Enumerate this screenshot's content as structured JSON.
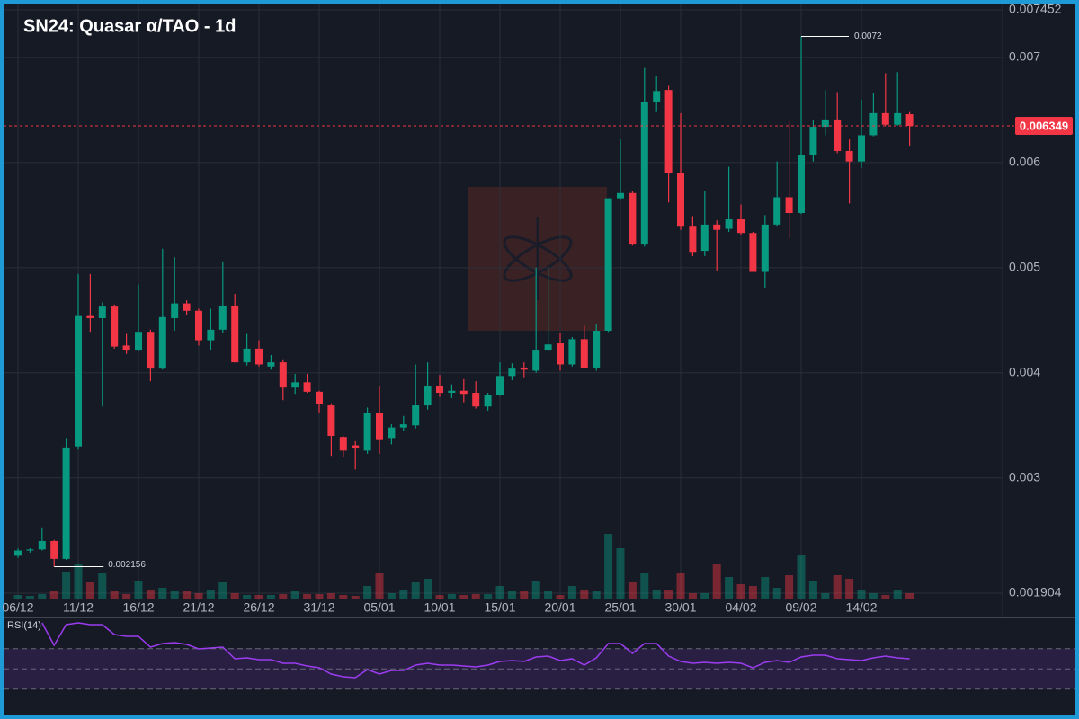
{
  "chart_data": {
    "type": "candlestick",
    "title": "SN24: Quasar α/TAO - 1d",
    "categories": [
      "06/12",
      null,
      null,
      null,
      null,
      "11/12",
      null,
      null,
      null,
      null,
      "16/12",
      null,
      null,
      null,
      null,
      "21/12",
      null,
      null,
      null,
      null,
      "26/12",
      null,
      null,
      null,
      null,
      "31/12",
      null,
      null,
      null,
      null,
      "05/01",
      null,
      null,
      null,
      null,
      "10/01",
      null,
      null,
      null,
      null,
      "15/01",
      null,
      null,
      null,
      null,
      "20/01",
      null,
      null,
      null,
      null,
      "25/01",
      null,
      null,
      null,
      null,
      "30/01",
      null,
      null,
      null,
      null,
      "04/02",
      null,
      null,
      null,
      null,
      "09/02",
      null,
      null,
      null,
      null,
      "14/02",
      null,
      null,
      null,
      null
    ],
    "open": [
      0.00226,
      0.00231,
      0.00232,
      0.0024,
      0.00223,
      0.0033,
      0.00454,
      0.00452,
      0.00463,
      0.00426,
      0.00422,
      0.00439,
      0.00404,
      0.00452,
      0.00466,
      0.00459,
      0.00431,
      0.00441,
      0.00464,
      0.0041,
      0.00423,
      0.00406,
      0.0041,
      0.00386,
      0.00391,
      0.00382,
      0.00369,
      0.00339,
      0.00331,
      0.00326,
      0.00362,
      0.00338,
      0.00348,
      0.0035,
      0.00369,
      0.00387,
      0.00381,
      0.00383,
      0.00381,
      0.00368,
      0.00379,
      0.00397,
      0.00405,
      0.00402,
      0.00422,
      0.00428,
      0.00408,
      0.00432,
      0.00405,
      0.0044,
      0.00566,
      0.00571,
      0.00522,
      0.00658,
      0.00669,
      0.0059,
      0.00539,
      0.00516,
      0.00541,
      0.00537,
      0.00546,
      0.00533,
      0.00496,
      0.00541,
      0.00567,
      0.00552,
      0.00607,
      0.00634,
      0.00641,
      0.00611,
      0.00601,
      0.00626,
      0.00647,
      0.00636,
      0.00646
    ],
    "high": [
      0.00233,
      0.00233,
      0.00253,
      0.00241,
      0.00338,
      0.00494,
      0.00494,
      0.00467,
      0.00465,
      0.00437,
      0.00484,
      0.00441,
      0.00518,
      0.0051,
      0.00469,
      0.00461,
      0.00461,
      0.00506,
      0.00475,
      0.00437,
      0.00431,
      0.00417,
      0.00412,
      0.00399,
      0.00399,
      0.00383,
      0.00371,
      0.0034,
      0.00335,
      0.00367,
      0.00387,
      0.00351,
      0.00359,
      0.00408,
      0.0041,
      0.00398,
      0.00389,
      0.00394,
      0.00392,
      0.00381,
      0.0041,
      0.00409,
      0.0041,
      0.005,
      0.005,
      0.00438,
      0.00434,
      0.00445,
      0.00446,
      0.00566,
      0.00622,
      0.00573,
      0.0069,
      0.00682,
      0.00673,
      0.00647,
      0.00549,
      0.00573,
      0.00545,
      0.00596,
      0.0056,
      0.00534,
      0.0055,
      0.00601,
      0.00639,
      0.0072,
      0.0064,
      0.00669,
      0.00667,
      0.00622,
      0.0066,
      0.00666,
      0.00685,
      0.00686,
      0.00648
    ],
    "low": [
      0.00224,
      0.00229,
      0.00231,
      0.002156,
      0.00222,
      0.00327,
      0.00439,
      0.00368,
      0.00423,
      0.00418,
      0.00421,
      0.00392,
      0.00403,
      0.0044,
      0.00455,
      0.00426,
      0.00422,
      0.00438,
      0.0041,
      0.00407,
      0.00406,
      0.00403,
      0.00374,
      0.0038,
      0.00381,
      0.00362,
      0.00321,
      0.0032,
      0.00308,
      0.00323,
      0.00323,
      0.00332,
      0.00345,
      0.00347,
      0.00365,
      0.00377,
      0.00376,
      0.00372,
      0.00366,
      0.00364,
      0.00378,
      0.00393,
      0.00395,
      0.004,
      0.00421,
      0.00402,
      0.00406,
      0.00405,
      0.00402,
      0.00439,
      0.00565,
      0.00521,
      0.0052,
      0.00648,
      0.00562,
      0.00536,
      0.00511,
      0.00511,
      0.00497,
      0.00534,
      0.00531,
      0.00496,
      0.00481,
      0.00539,
      0.00528,
      0.00551,
      0.00601,
      0.00626,
      0.00609,
      0.00561,
      0.00595,
      0.00625,
      0.00635,
      0.00635,
      0.00616
    ],
    "close": [
      0.00231,
      0.00232,
      0.0024,
      0.00223,
      0.00329,
      0.00454,
      0.00452,
      0.00463,
      0.00425,
      0.00422,
      0.00439,
      0.00404,
      0.00453,
      0.00466,
      0.00459,
      0.00431,
      0.00441,
      0.00464,
      0.0041,
      0.00423,
      0.00408,
      0.0041,
      0.00386,
      0.00391,
      0.00382,
      0.0037,
      0.0034,
      0.00326,
      0.00328,
      0.00362,
      0.00336,
      0.00348,
      0.00351,
      0.00369,
      0.00387,
      0.00381,
      0.00383,
      0.0038,
      0.00368,
      0.00379,
      0.00397,
      0.00404,
      0.00403,
      0.00422,
      0.00427,
      0.00408,
      0.00432,
      0.00405,
      0.0044,
      0.00566,
      0.00571,
      0.00522,
      0.00658,
      0.00668,
      0.0059,
      0.00539,
      0.00515,
      0.00541,
      0.00536,
      0.00546,
      0.00533,
      0.00496,
      0.00541,
      0.00567,
      0.00552,
      0.00607,
      0.00634,
      0.00641,
      0.00611,
      0.00601,
      0.00626,
      0.00647,
      0.00636,
      0.00647,
      0.006349
    ],
    "volume": [
      4,
      3,
      5,
      8,
      30,
      38,
      18,
      28,
      8,
      5,
      20,
      10,
      12,
      8,
      8,
      6,
      10,
      18,
      6,
      4,
      4,
      4,
      5,
      8,
      5,
      5,
      6,
      4,
      3,
      14,
      28,
      6,
      10,
      18,
      22,
      4,
      5,
      4,
      5,
      5,
      14,
      8,
      8,
      20,
      8,
      4,
      14,
      10,
      8,
      72,
      56,
      18,
      28,
      10,
      10,
      28,
      6,
      6,
      38,
      24,
      16,
      14,
      24,
      12,
      26,
      48,
      20,
      6,
      26,
      22,
      10,
      6,
      4,
      10,
      6
    ],
    "up_color": "#089981",
    "down_color": "#f23645",
    "ylim": [
      0.001904,
      0.007452
    ],
    "yticks": [
      0.001904,
      0.003,
      0.004,
      0.005,
      0.006,
      0.007,
      0.007452
    ],
    "grid": true,
    "rsi": {
      "name": "RSI(14)",
      "color": "#9c3cf0",
      "ylim": [
        26,
        100
      ],
      "levels": [
        30,
        50,
        70
      ],
      "values": [
        null,
        null,
        95.6,
        73.3,
        93.8,
        95.6,
        93.8,
        93.8,
        84,
        82.2,
        82.2,
        71.6,
        75.1,
        76,
        74.2,
        69.8,
        70.7,
        71.6,
        60,
        60.9,
        59.1,
        59.1,
        55.6,
        55.6,
        52.9,
        51.1,
        44.9,
        42.2,
        41.3,
        49.3,
        44.9,
        48.4,
        48.4,
        53.8,
        55.6,
        53.8,
        53.8,
        52.9,
        52,
        53.8,
        57.3,
        58.2,
        57.3,
        61.8,
        62.7,
        58.2,
        60,
        53.8,
        60.9,
        75.1,
        75.1,
        65.3,
        75.1,
        75.1,
        62.7,
        57.3,
        55.6,
        56.4,
        55.6,
        56.4,
        55.6,
        51.1,
        56.4,
        58.2,
        56.4,
        61.8,
        63.6,
        63.6,
        60,
        59.1,
        58.2,
        60.9,
        62.7,
        60.9,
        60
      ]
    }
  }
}
